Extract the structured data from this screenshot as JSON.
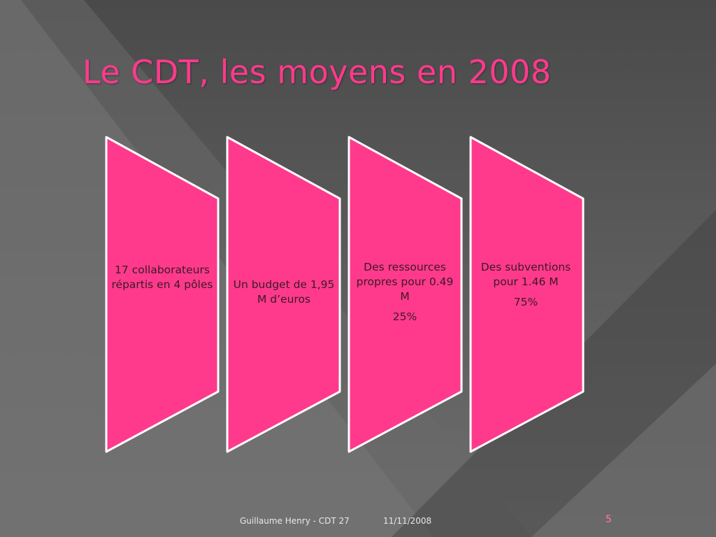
{
  "slide": {
    "title": "Le CDT, les moyens en 2008",
    "shapes": [
      {
        "text": "17 collaborateurs répartis en 4 pôles",
        "percent": ""
      },
      {
        "text": "Un budget de 1,95 M d’euros",
        "percent": ""
      },
      {
        "text": "Des ressources propres pour 0.49 M",
        "percent": "25%"
      },
      {
        "text": "Des subventions pour 1.46 M",
        "percent": "75%"
      }
    ],
    "footer_author": "Guillaume Henry - CDT 27",
    "footer_date": "11/11/2008",
    "page_number": "5"
  },
  "colors": {
    "accent": "#ff3a8c",
    "shape_fill": "#ff3a8c",
    "shape_border": "#ffffff"
  }
}
